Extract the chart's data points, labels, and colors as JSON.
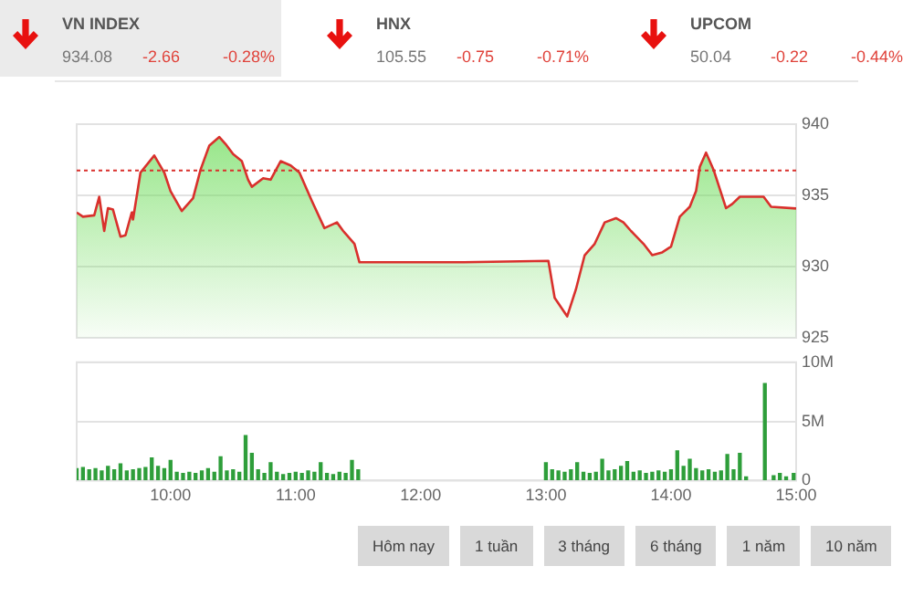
{
  "chart_data": [
    {
      "type": "other",
      "categories": [
        "VN INDEX",
        "HNX",
        "UPCOM"
      ],
      "annotations": [
        "934.08",
        "-2.66",
        "-0.28%",
        "105.55",
        "-0.75",
        "-0.71%",
        "50.04",
        "-0.22",
        "-0.44%"
      ]
    },
    {
      "type": "area",
      "xlim": [
        9.25,
        15
      ],
      "ylim": [
        925,
        940
      ],
      "yticks": [
        925,
        930,
        935,
        940
      ],
      "tick_labels": "y",
      "grid": "y",
      "legend": false,
      "series": [
        {
          "color": "#d9302c",
          "x": [
            9.25,
            9.3,
            9.39,
            9.43,
            9.47,
            9.5,
            9.54,
            9.6,
            9.64,
            9.69,
            9.7,
            9.76,
            9.87,
            9.95,
            10.0,
            10.09,
            10.18,
            10.24,
            10.31,
            10.39,
            10.44,
            10.5,
            10.57,
            10.62,
            10.65,
            10.74,
            10.8,
            10.88,
            10.96,
            11.03,
            11.13,
            11.23,
            11.33,
            11.38,
            11.47,
            11.51,
            12.31,
            13.02,
            13.07,
            13.17,
            13.24,
            13.31,
            13.39,
            13.47,
            13.56,
            13.62,
            13.68,
            13.78,
            13.85,
            13.93,
            14.0,
            14.07,
            14.15,
            14.2,
            14.23,
            14.28,
            14.34,
            14.44,
            14.49,
            14.55,
            14.74,
            14.8,
            15.0
          ],
          "values": [
            933.8,
            933.5,
            933.6,
            934.9,
            932.5,
            934.1,
            934.0,
            932.1,
            932.2,
            933.8,
            933.3,
            936.6,
            937.8,
            936.6,
            935.3,
            933.9,
            934.8,
            936.8,
            938.5,
            939.1,
            938.6,
            937.9,
            937.4,
            936.1,
            935.6,
            936.2,
            936.1,
            937.4,
            937.1,
            936.6,
            934.6,
            932.7,
            933.1,
            932.5,
            931.6,
            930.3,
            930.3,
            930.4,
            927.8,
            926.5,
            928.4,
            930.8,
            931.6,
            933.1,
            933.4,
            933.1,
            932.5,
            931.6,
            930.8,
            931.0,
            931.4,
            933.5,
            934.2,
            935.3,
            937.0,
            938.0,
            936.8,
            934.1,
            934.4,
            934.9,
            934.9,
            934.2,
            934.08
          ]
        }
      ],
      "ref_lines": [
        {
          "axis": "y",
          "value": 936.74,
          "color": "#d9302c",
          "line_style": "dotted"
        }
      ]
    },
    {
      "type": "bar",
      "xlim": [
        9.25,
        15
      ],
      "xticks": [
        {
          "value": 10,
          "label": "10:00"
        },
        {
          "value": 11,
          "label": "11:00"
        },
        {
          "value": 12,
          "label": "12:00"
        },
        {
          "value": 13,
          "label": "13:00"
        },
        {
          "value": 14,
          "label": "14:00"
        },
        {
          "value": 15,
          "label": "15:00"
        }
      ],
      "ylim": [
        0,
        10
      ],
      "yticks": [
        {
          "value": 0,
          "label": "0"
        },
        {
          "value": 5,
          "label": "5M"
        },
        {
          "value": 10,
          "label": "10M"
        }
      ],
      "grid": "y",
      "legend": false,
      "color": "#2e9e3a",
      "x": [
        9.25,
        9.3,
        9.35,
        9.4,
        9.45,
        9.5,
        9.55,
        9.6,
        9.65,
        9.7,
        9.75,
        9.8,
        9.85,
        9.9,
        9.95,
        10.0,
        10.05,
        10.1,
        10.15,
        10.2,
        10.25,
        10.3,
        10.35,
        10.4,
        10.45,
        10.5,
        10.55,
        10.6,
        10.65,
        10.7,
        10.75,
        10.8,
        10.85,
        10.9,
        10.95,
        11.0,
        11.05,
        11.1,
        11.15,
        11.2,
        11.25,
        11.3,
        11.35,
        11.4,
        11.45,
        11.5,
        13.0,
        13.05,
        13.1,
        13.15,
        13.2,
        13.25,
        13.3,
        13.35,
        13.4,
        13.45,
        13.5,
        13.55,
        13.6,
        13.65,
        13.7,
        13.75,
        13.8,
        13.85,
        13.9,
        13.95,
        14.0,
        14.05,
        14.1,
        14.15,
        14.2,
        14.25,
        14.3,
        14.35,
        14.4,
        14.45,
        14.5,
        14.55,
        14.6,
        14.75,
        14.82,
        14.87,
        14.92,
        14.98
      ],
      "values": [
        1.0,
        1.1,
        0.9,
        1.0,
        0.8,
        1.2,
        0.9,
        1.4,
        0.8,
        0.9,
        1.0,
        1.1,
        1.9,
        1.2,
        1.0,
        1.7,
        0.7,
        0.6,
        0.7,
        0.6,
        0.8,
        1.0,
        0.7,
        2.0,
        0.8,
        0.9,
        0.7,
        3.8,
        2.3,
        0.9,
        0.6,
        1.5,
        0.7,
        0.5,
        0.6,
        0.7,
        0.6,
        0.8,
        0.7,
        1.5,
        0.6,
        0.5,
        0.7,
        0.6,
        1.7,
        0.9,
        1.5,
        0.9,
        0.8,
        0.7,
        0.9,
        1.5,
        0.7,
        0.6,
        0.7,
        1.8,
        0.8,
        0.9,
        1.2,
        1.6,
        0.7,
        0.8,
        0.6,
        0.7,
        0.8,
        0.7,
        0.9,
        2.5,
        1.2,
        1.8,
        1.0,
        0.8,
        0.9,
        0.7,
        0.8,
        2.2,
        0.9,
        2.3,
        0.3,
        8.2,
        0.4,
        0.6,
        0.3,
        0.6
      ]
    },
    {
      "type": "other",
      "categories": [
        "Hôm nay",
        "1 tuần",
        "3 tháng",
        "6 tháng",
        "1 năm",
        "10 năm"
      ]
    }
  ]
}
